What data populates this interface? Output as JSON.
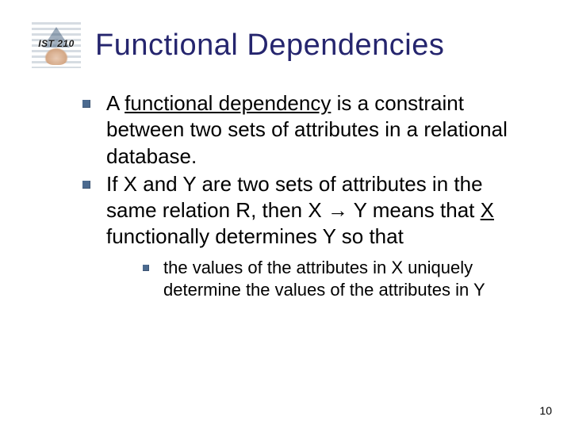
{
  "header": {
    "course_label": "IST 210",
    "title": "Functional Dependencies"
  },
  "bullets": {
    "b1_pre": "A ",
    "b1_term": "functional dependency",
    "b1_post": " is a constraint between two sets of attributes in a relational database.",
    "b2_pre": "If X and Y are two sets of attributes in the same relation R, then X ",
    "b2_arrow": "→",
    "b2_mid": " Y means that ",
    "b2_x": "X",
    "b2_post": " functionally determines Y so that",
    "sub1": "the values of the attributes in X uniquely determine the values of the attributes in Y"
  },
  "footer": {
    "page_number": "10"
  },
  "colors": {
    "title_color": "#25256e",
    "bullet_color": "#4b6a8f",
    "text_color": "#000000",
    "background": "#ffffff"
  }
}
